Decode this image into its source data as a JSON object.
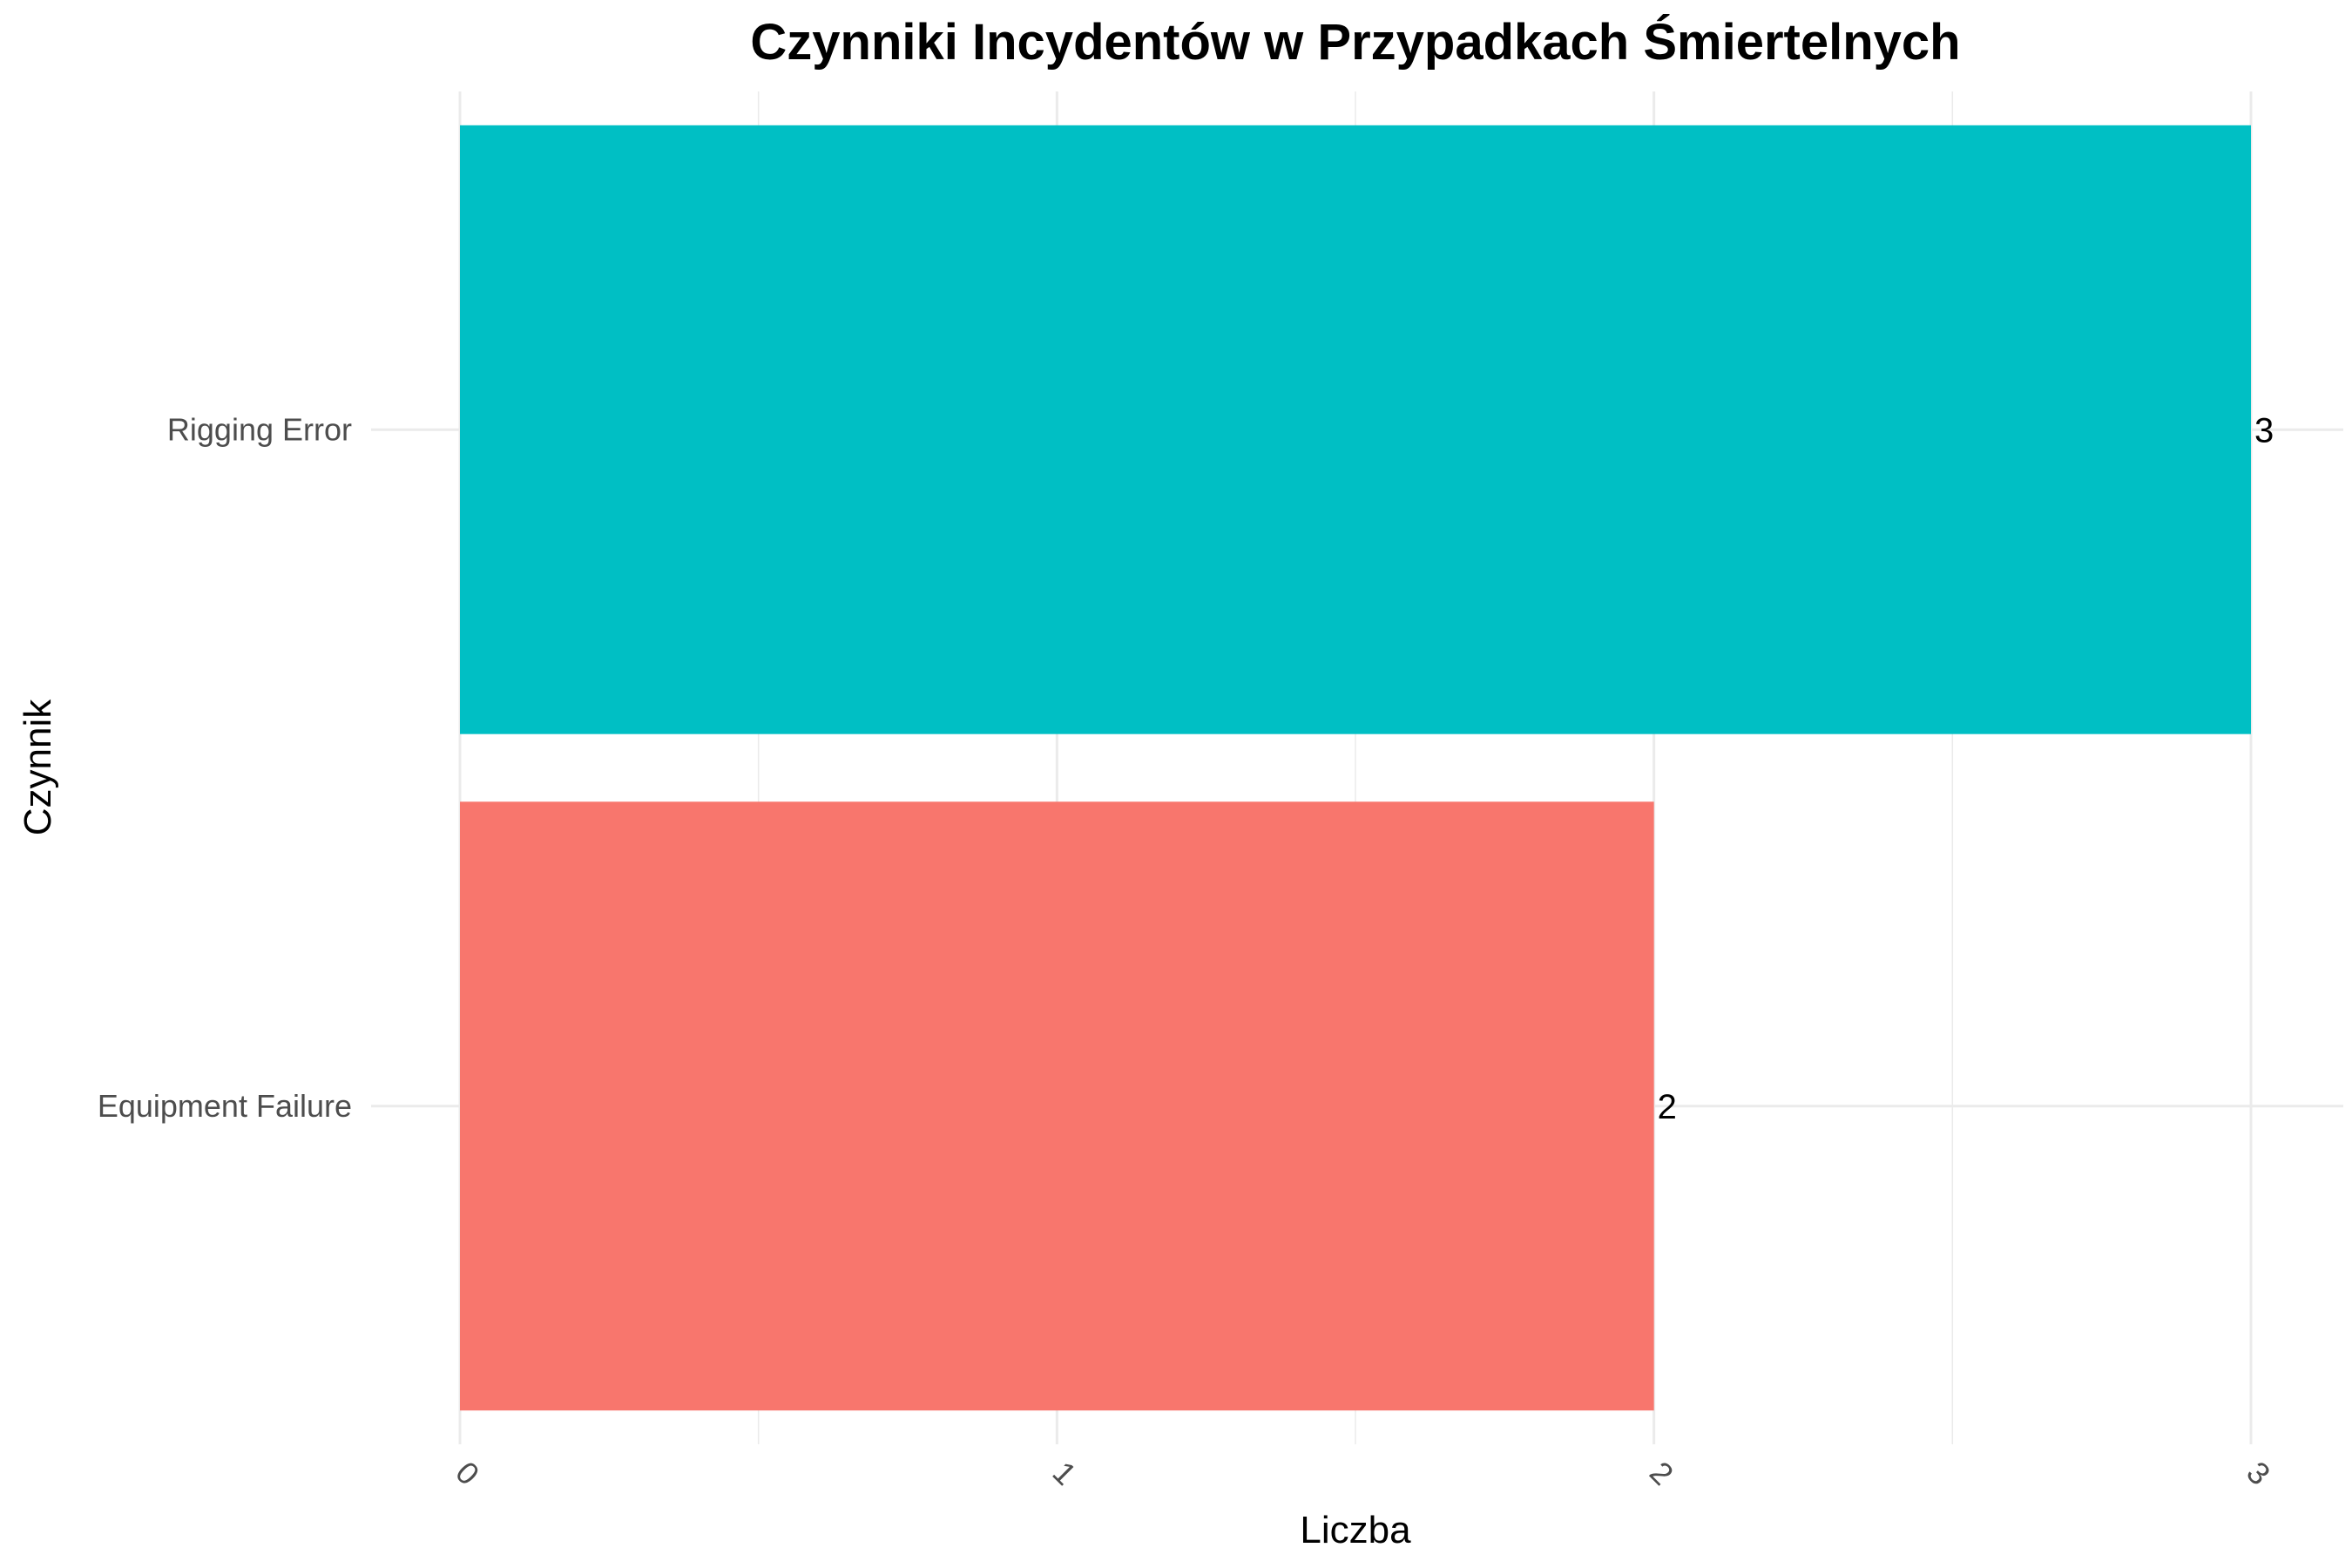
{
  "chart_data": {
    "type": "bar",
    "orientation": "horizontal",
    "title": "Czynniki Incydentów w Przypadkach Śmiertelnych",
    "xlabel": "Liczba",
    "ylabel": "Czynnik",
    "categories": [
      "Equipment Failure",
      "Rigging Error"
    ],
    "values": [
      2,
      3
    ],
    "data_labels": [
      "2",
      "3"
    ],
    "colors": [
      "#F8766D",
      "#00BFC4"
    ],
    "xlim": [
      0,
      3
    ],
    "x_ticks": [
      0,
      1,
      2,
      3
    ],
    "x_tick_labels": [
      "0",
      "1",
      "2",
      "3"
    ],
    "x_tick_rotation": 45,
    "grid": true,
    "legend": "none"
  }
}
